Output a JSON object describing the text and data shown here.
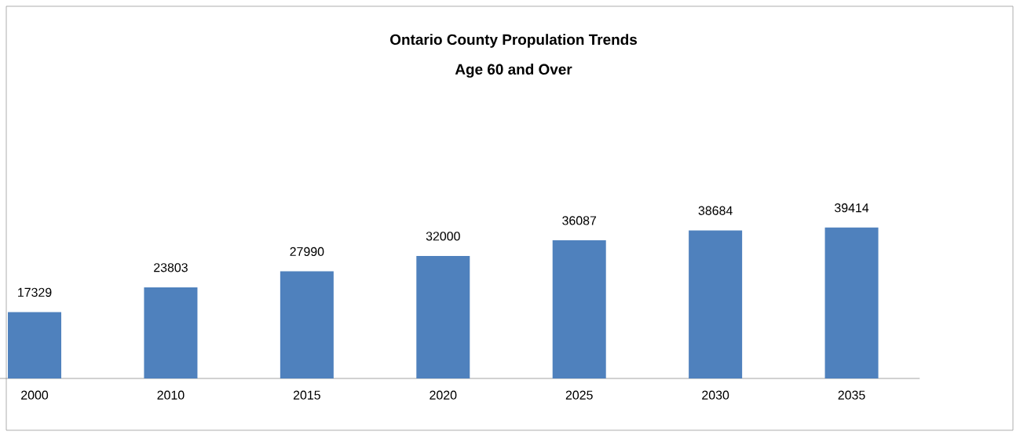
{
  "chart_data": {
    "type": "bar",
    "title": "Ontario County Propulation Trends",
    "subtitle": "Age 60 and Over",
    "categories": [
      "2000",
      "2010",
      "2015",
      "2020",
      "2025",
      "2030",
      "2035"
    ],
    "values": [
      17329,
      23803,
      27990,
      32000,
      36087,
      38684,
      39414
    ],
    "color": "#4f81bd",
    "data_labels": true
  }
}
